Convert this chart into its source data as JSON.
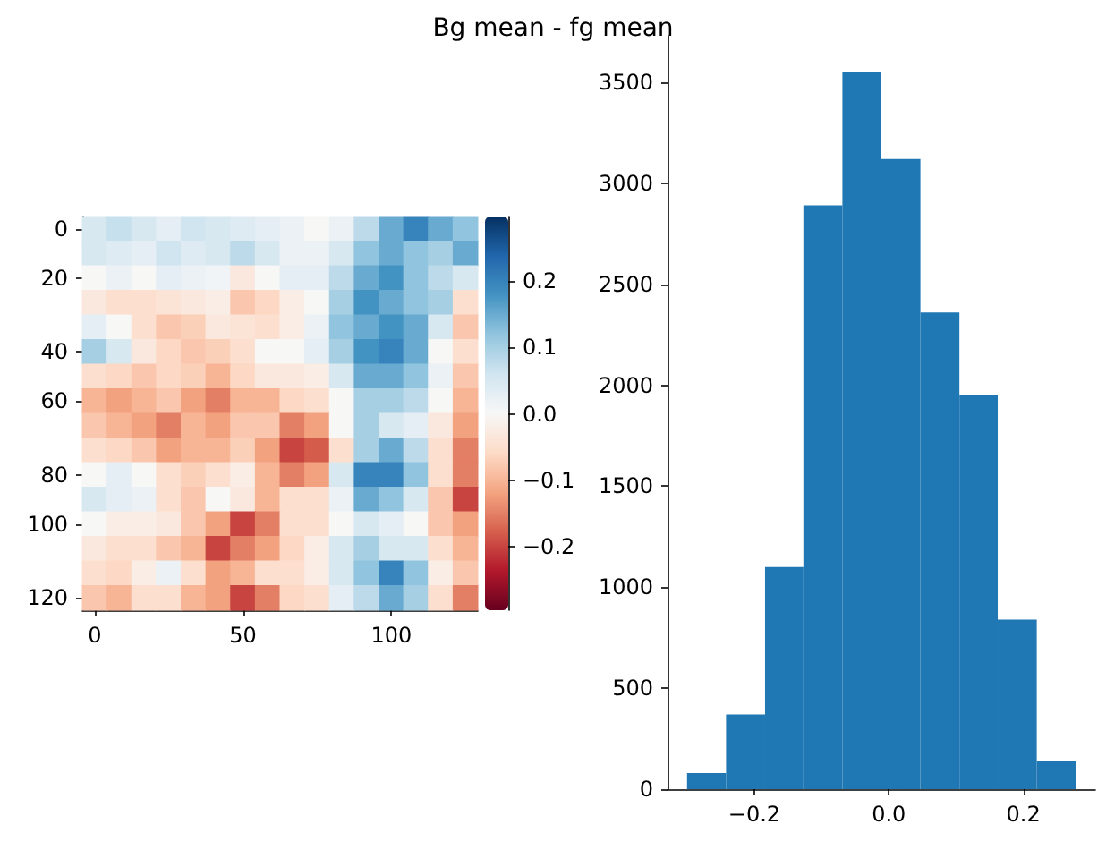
{
  "chart_data": [
    {
      "type": "heatmap",
      "title": "Bg mean - fg mean",
      "categories": [
        "0",
        null,
        null,
        null,
        null,
        null,
        "50",
        null,
        null,
        null,
        null,
        null,
        "100",
        null,
        null,
        null
      ],
      "y_categories": [
        "0",
        null,
        "20",
        null,
        null,
        "40",
        null,
        "60",
        null,
        null,
        "80",
        null,
        "100",
        null,
        null,
        "120"
      ],
      "clim": [
        -0.295,
        0.297
      ],
      "cticks": [
        -0.2,
        -0.1,
        {
          "value": 0,
          "label": "0.0"
        },
        0.1,
        0.2
      ],
      "cells": [
        [
          0.05,
          0.07,
          0.05,
          0.03,
          0.06,
          0.05,
          0.04,
          0.03,
          0.02,
          0.0,
          0.02,
          0.08,
          0.15,
          0.2,
          0.15,
          0.12
        ],
        [
          0.05,
          0.04,
          0.03,
          0.06,
          0.04,
          0.05,
          0.08,
          0.05,
          0.02,
          0.02,
          0.05,
          0.12,
          0.15,
          0.12,
          0.1,
          0.15
        ],
        [
          0.0,
          0.02,
          0.0,
          0.03,
          0.02,
          0.01,
          -0.03,
          0.0,
          0.03,
          0.03,
          0.08,
          0.15,
          0.18,
          0.12,
          0.08,
          0.05
        ],
        [
          -0.03,
          -0.05,
          -0.05,
          -0.04,
          -0.03,
          -0.02,
          -0.08,
          -0.06,
          -0.02,
          0.0,
          0.1,
          0.18,
          0.15,
          0.12,
          0.1,
          -0.05
        ],
        [
          0.03,
          0.0,
          -0.05,
          -0.08,
          -0.07,
          -0.03,
          -0.04,
          -0.05,
          -0.02,
          0.02,
          0.12,
          0.15,
          0.18,
          0.15,
          0.05,
          -0.08
        ],
        [
          0.1,
          0.05,
          -0.03,
          -0.06,
          -0.08,
          -0.07,
          -0.05,
          0.0,
          0.0,
          0.03,
          0.1,
          0.18,
          0.2,
          0.15,
          0.0,
          -0.05
        ],
        [
          -0.05,
          -0.06,
          -0.08,
          -0.06,
          -0.07,
          -0.1,
          -0.06,
          -0.03,
          -0.03,
          -0.02,
          0.05,
          0.15,
          0.15,
          0.12,
          0.02,
          -0.08
        ],
        [
          -0.1,
          -0.12,
          -0.1,
          -0.08,
          -0.12,
          -0.15,
          -0.1,
          -0.1,
          -0.06,
          -0.05,
          0.0,
          0.1,
          0.1,
          0.08,
          0.0,
          -0.1
        ],
        [
          -0.08,
          -0.1,
          -0.12,
          -0.15,
          -0.1,
          -0.12,
          -0.08,
          -0.08,
          -0.15,
          -0.12,
          0.0,
          0.1,
          0.05,
          0.03,
          -0.03,
          -0.12
        ],
        [
          -0.05,
          -0.06,
          -0.08,
          -0.12,
          -0.1,
          -0.1,
          -0.07,
          -0.12,
          -0.2,
          -0.18,
          -0.05,
          0.1,
          0.15,
          0.08,
          -0.05,
          -0.15
        ],
        [
          0.0,
          0.03,
          0.0,
          -0.05,
          -0.07,
          -0.05,
          -0.02,
          -0.1,
          -0.15,
          -0.12,
          0.05,
          0.2,
          0.2,
          0.12,
          -0.05,
          -0.15
        ],
        [
          0.05,
          0.03,
          0.02,
          -0.05,
          -0.08,
          0.0,
          -0.03,
          -0.1,
          -0.05,
          -0.05,
          0.02,
          0.15,
          0.12,
          0.05,
          -0.08,
          -0.2
        ],
        [
          0.0,
          -0.02,
          -0.02,
          -0.03,
          -0.08,
          -0.12,
          -0.2,
          -0.15,
          -0.05,
          -0.05,
          0.0,
          0.05,
          0.03,
          0.0,
          -0.08,
          -0.12
        ],
        [
          -0.03,
          -0.05,
          -0.05,
          -0.08,
          -0.1,
          -0.2,
          -0.15,
          -0.12,
          -0.06,
          -0.02,
          0.05,
          0.1,
          0.05,
          0.05,
          -0.05,
          -0.1
        ],
        [
          -0.05,
          -0.06,
          -0.02,
          0.02,
          -0.05,
          -0.12,
          -0.1,
          -0.05,
          -0.05,
          -0.02,
          0.05,
          0.12,
          0.2,
          0.12,
          -0.02,
          -0.08
        ],
        [
          -0.08,
          -0.1,
          -0.05,
          -0.05,
          -0.1,
          -0.12,
          -0.2,
          -0.15,
          -0.06,
          -0.05,
          0.03,
          0.08,
          0.15,
          0.1,
          -0.05,
          -0.15
        ]
      ]
    },
    {
      "type": "histogram",
      "color": "#1f77b4",
      "bins": [
        -0.3,
        -0.242,
        -0.184,
        -0.127,
        -0.069,
        -0.011,
        0.047,
        0.105,
        0.162,
        0.22,
        0.278
      ],
      "values": [
        80,
        370,
        1100,
        2890,
        3550,
        3120,
        2360,
        1950,
        840,
        140
      ],
      "xlim": [
        -0.329,
        0.307
      ],
      "xticks": [
        -0.2,
        {
          "value": 0,
          "label": "0.0"
        },
        0.2
      ],
      "ylim": [
        0,
        3730
      ],
      "yticks": [
        0,
        500,
        1000,
        1500,
        2000,
        2500,
        3000,
        3500
      ]
    }
  ]
}
